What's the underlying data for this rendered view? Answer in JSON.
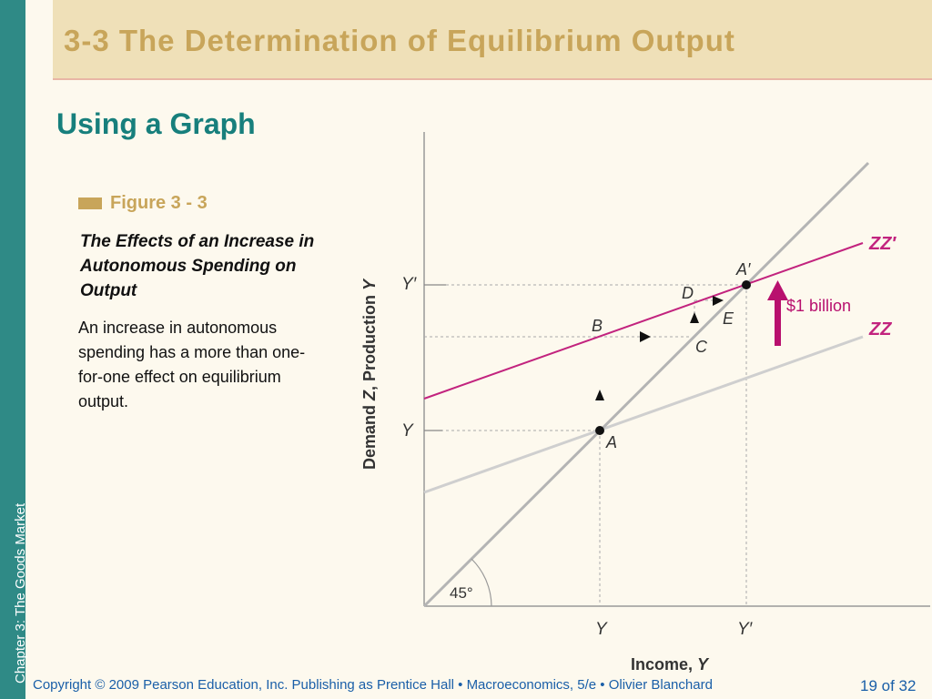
{
  "side_label": "Chapter 3:  The Goods Market",
  "title": "3-3  The Determination of Equilibrium Output",
  "subtitle": "Using a Graph",
  "figure": {
    "label": "Figure 3 - 3",
    "caption": "The Effects of an Increase in Autonomous Spending on Output",
    "description": "An increase in autonomous spending has a more than one-for-one effect on equilibrium output."
  },
  "graph": {
    "y_axis_label_part1": "Demand ",
    "y_axis_label_Z": "Z",
    "y_axis_label_part2": ", Production ",
    "y_axis_label_Y": "Y",
    "x_axis_label_part1": "Income, ",
    "x_axis_label_Y": "Y",
    "y_tick_low": "Y",
    "y_tick_high": "Y′",
    "x_tick_low": "Y",
    "x_tick_high": "Y′",
    "angle_label": "45°",
    "curve_zz_prime": "ZZ′",
    "curve_zz": "ZZ",
    "shift_label": "$1 billion",
    "point_A": "A",
    "point_A_prime": "A′",
    "point_B": "B",
    "point_C": "C",
    "point_D": "D",
    "point_E": "E",
    "colors": {
      "zz_prime": "#c2237e",
      "zz": "#c8c8c8",
      "line45": "#a8a8a8",
      "arrow": "#b8106e"
    }
  },
  "footer": "Copyright © 2009 Pearson Education, Inc. Publishing as Prentice Hall  •  Macroeconomics, 5/e  •  Olivier Blanchard",
  "page": "19 of 32"
}
